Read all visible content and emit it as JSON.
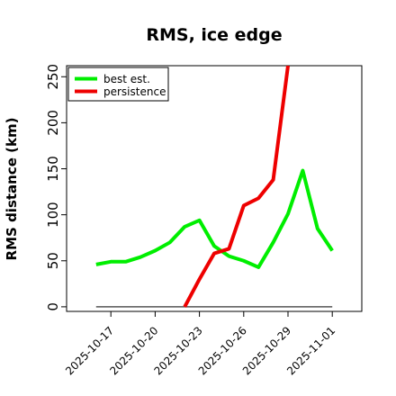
{
  "chart_data": {
    "type": "line",
    "title": "RMS, ice edge",
    "xlabel": "",
    "ylabel": "RMS distance (km)",
    "x_tick_labels": [
      "2025-10-17",
      "2025-10-20",
      "2025-10-23",
      "2025-10-26",
      "2025-10-29",
      "2025-11-01"
    ],
    "y_ticks": [
      0,
      50,
      100,
      150,
      200,
      250
    ],
    "ylim": [
      -5,
      262
    ],
    "xlim": [
      "2025-10-14",
      "2025-11-03"
    ],
    "legend_position": "top-left",
    "grid": false,
    "reference_line": {
      "x": [
        "2025-10-16",
        "2025-11-01"
      ],
      "y": [
        0,
        0
      ],
      "color": "#555555"
    },
    "series": [
      {
        "name": "best est.",
        "color": "#00ee00",
        "x": [
          "2025-10-16",
          "2025-10-17",
          "2025-10-18",
          "2025-10-19",
          "2025-10-20",
          "2025-10-21",
          "2025-10-22",
          "2025-10-23",
          "2025-10-24",
          "2025-10-25",
          "2025-10-26",
          "2025-10-27",
          "2025-10-28",
          "2025-10-29",
          "2025-10-30",
          "2025-10-31",
          "2025-11-01"
        ],
        "y": [
          46,
          49,
          49,
          54,
          61,
          70,
          87,
          94,
          66,
          55,
          50,
          43,
          70,
          101,
          148,
          85,
          61
        ]
      },
      {
        "name": "persistence",
        "color": "#ee0000",
        "x": [
          "2025-10-22",
          "2025-10-23",
          "2025-10-24",
          "2025-10-25",
          "2025-10-26",
          "2025-10-27",
          "2025-10-28",
          "2025-10-29"
        ],
        "y": [
          0,
          30,
          58,
          63,
          110,
          118,
          138,
          262
        ]
      }
    ]
  }
}
